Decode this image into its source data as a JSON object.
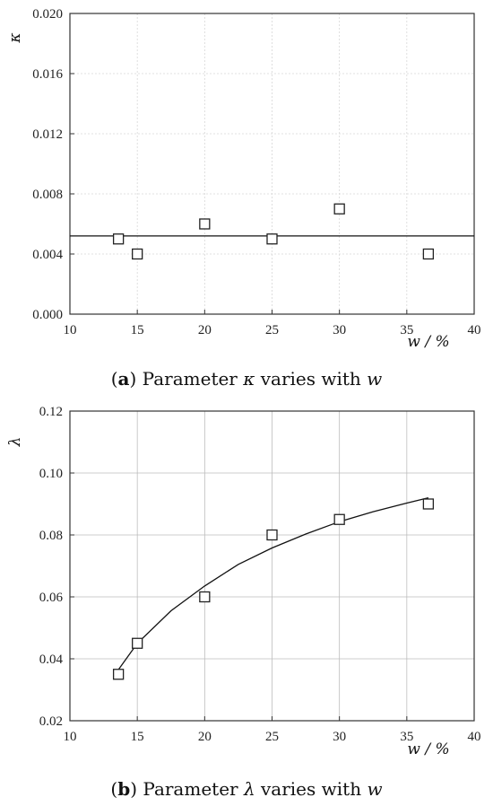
{
  "chart_data": [
    {
      "type": "scatter",
      "x": [
        13.6,
        15,
        20,
        25,
        30,
        36.6
      ],
      "y": [
        0.005,
        0.004,
        0.006,
        0.005,
        0.007,
        0.004
      ],
      "fit": {
        "kind": "horizontal",
        "y": 0.0052
      },
      "xlim": [
        10,
        40
      ],
      "ylim": [
        0,
        0.02
      ],
      "xticks": [
        "10",
        "15",
        "20",
        "25",
        "30",
        "35",
        "40"
      ],
      "yticks": [
        "0.000",
        "0.004",
        "0.008",
        "0.012",
        "0.016",
        "0.020"
      ],
      "xlabel": "w / %",
      "ylabel": "κ",
      "grid": "dashed"
    },
    {
      "type": "scatter",
      "x": [
        13.6,
        15,
        20,
        25,
        30,
        36.6
      ],
      "y": [
        0.035,
        0.045,
        0.06,
        0.08,
        0.085,
        0.09
      ],
      "fit": {
        "kind": "curve",
        "x": [
          13.6,
          15,
          17.5,
          20,
          22.5,
          25,
          27.5,
          30,
          32.5,
          35,
          36.6
        ],
        "y": [
          0.0365,
          0.045,
          0.0555,
          0.0635,
          0.0705,
          0.0758,
          0.0803,
          0.0843,
          0.0875,
          0.0903,
          0.092
        ]
      },
      "xlim": [
        10,
        40
      ],
      "ylim": [
        0.02,
        0.12
      ],
      "xticks": [
        "10",
        "15",
        "20",
        "25",
        "30",
        "35",
        "40"
      ],
      "yticks": [
        "0.02",
        "0.04",
        "0.06",
        "0.08",
        "0.10",
        "0.12"
      ],
      "xlabel": "w  /  %",
      "ylabel": "λ",
      "grid": "solid"
    }
  ],
  "captions": [
    {
      "letter": "a",
      "text_before": " Parameter ",
      "symbol": "κ",
      "text_after": " varies with ",
      "var": "w"
    },
    {
      "letter": "b",
      "text_before": " Parameter ",
      "symbol": "λ",
      "text_after": " varies with ",
      "var": "w"
    }
  ]
}
